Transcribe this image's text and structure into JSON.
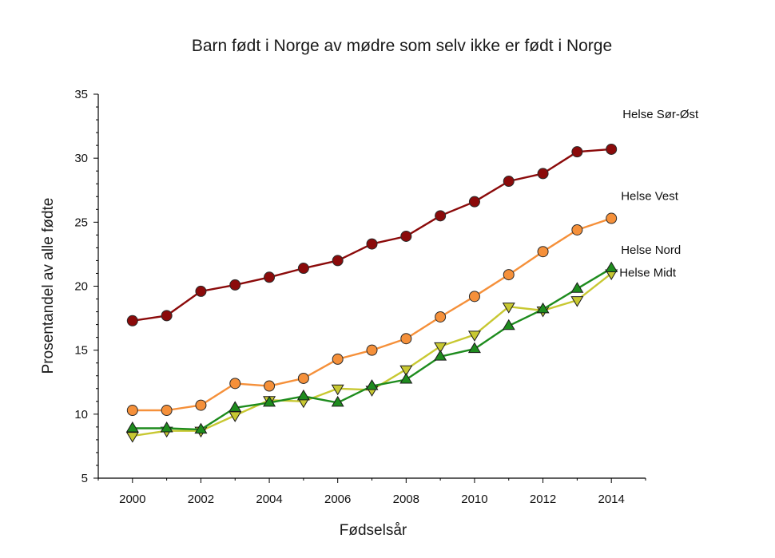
{
  "chart_data": {
    "type": "line",
    "title": "Barn født i Norge av mødre som selv ikke er født i Norge",
    "xlabel": "Fødselsår",
    "ylabel": "Prosentandel av alle fødte",
    "xlim": [
      1999,
      2015
    ],
    "ylim": [
      5,
      35
    ],
    "grid": false,
    "legend": "inline labels at right end of lines",
    "x": [
      2000,
      2001,
      2002,
      2003,
      2004,
      2005,
      2006,
      2007,
      2008,
      2009,
      2010,
      2011,
      2012,
      2013,
      2014
    ],
    "x_ticks": [
      "2000",
      "2002",
      "2004",
      "2006",
      "2008",
      "2010",
      "2012",
      "2014"
    ],
    "y_ticks": [
      "5",
      "10",
      "15",
      "20",
      "25",
      "30",
      "35"
    ],
    "series": [
      {
        "name": "Helse Sør-Øst",
        "color": "#8b0a0a",
        "marker": "circle",
        "values": [
          17.3,
          17.7,
          19.6,
          20.1,
          20.7,
          21.4,
          22.0,
          23.3,
          23.9,
          25.5,
          26.6,
          28.2,
          28.8,
          30.5,
          30.7
        ]
      },
      {
        "name": "Helse Vest",
        "color": "#f5903a",
        "marker": "circle",
        "values": [
          10.3,
          10.3,
          10.7,
          12.4,
          12.2,
          12.8,
          14.3,
          15.0,
          15.9,
          17.6,
          19.2,
          20.9,
          22.7,
          24.4,
          25.3
        ]
      },
      {
        "name": "Helse Nord",
        "color": "#1e8c1e",
        "marker": "triangle-up",
        "values": [
          8.9,
          8.9,
          8.8,
          10.5,
          10.9,
          11.4,
          10.9,
          12.2,
          12.7,
          14.5,
          15.1,
          16.9,
          18.2,
          19.8,
          21.4
        ]
      },
      {
        "name": "Helse Midt",
        "color": "#c8c832",
        "marker": "triangle-down",
        "values": [
          8.3,
          8.7,
          8.7,
          9.9,
          11.1,
          11.0,
          12.0,
          11.9,
          13.5,
          15.3,
          16.2,
          18.4,
          18.1,
          18.9,
          21.0
        ]
      }
    ]
  }
}
